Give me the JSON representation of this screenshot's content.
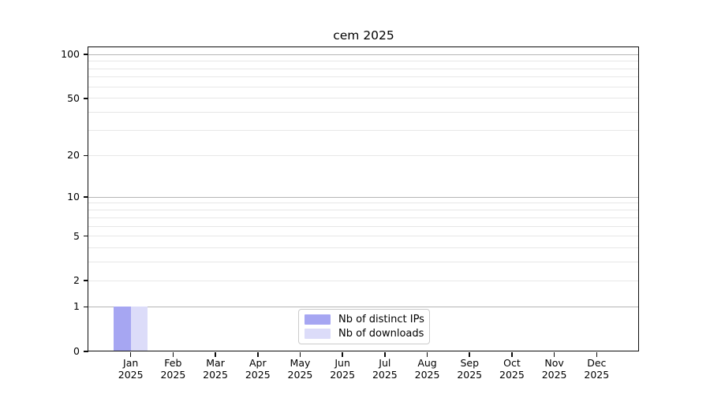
{
  "chart_data": {
    "type": "bar",
    "title": "cem 2025",
    "categories": [
      "Jan 2025",
      "Feb 2025",
      "Mar 2025",
      "Apr 2025",
      "May 2025",
      "Jun 2025",
      "Jul 2025",
      "Aug 2025",
      "Sep 2025",
      "Oct 2025",
      "Nov 2025",
      "Dec 2025"
    ],
    "series": [
      {
        "name": "Nb of distinct IPs",
        "color": "#a6a6f2",
        "values": [
          1,
          0,
          0,
          0,
          0,
          0,
          0,
          0,
          0,
          0,
          0,
          0
        ]
      },
      {
        "name": "Nb of downloads",
        "color": "#dcdcf9",
        "values": [
          1,
          0,
          0,
          0,
          0,
          0,
          0,
          0,
          0,
          0,
          0,
          0
        ]
      }
    ],
    "yscale": "log1p",
    "ylim": [
      0,
      112
    ],
    "xlim": [
      -1,
      12
    ],
    "yticks": [
      0,
      1,
      2,
      5,
      10,
      20,
      50,
      100
    ],
    "grid": {
      "on": true,
      "major_values": [
        1,
        10,
        100
      ],
      "minor_values": [
        2,
        3,
        4,
        5,
        6,
        7,
        8,
        9,
        20,
        30,
        40,
        50,
        60,
        70,
        80,
        90
      ]
    },
    "legend": {
      "position": "lower center"
    },
    "colors": {
      "grid_major": "#b5b5b5",
      "grid_minor": "#e7e7e7",
      "spine": "#0d0d0d",
      "background": "#ffffff"
    }
  }
}
